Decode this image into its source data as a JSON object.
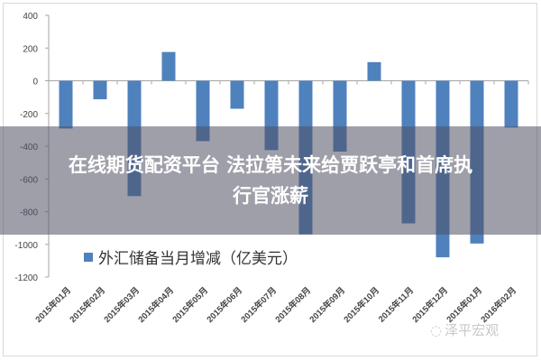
{
  "chart_data": {
    "type": "bar",
    "title": "",
    "xlabel": "",
    "ylabel": "",
    "ylim": [
      -1200,
      400
    ],
    "yticks": [
      400,
      200,
      0,
      -200,
      -400,
      -600,
      -800,
      -1000,
      -1200
    ],
    "grid": false,
    "legend_position": "inside-lower-left",
    "categories": [
      "2015年01月",
      "2015年02月",
      "2015年03月",
      "2015年04月",
      "2015年05月",
      "2015年06月",
      "2015年07月",
      "2015年08月",
      "2015年09月",
      "2015年10月",
      "2015年11月",
      "2015年12月",
      "2016年01月",
      "2016年02月"
    ],
    "series": [
      {
        "name": "外汇储备当月增减（亿美元）",
        "color": "#4f81bd",
        "values": [
          -292,
          -113,
          -705,
          176,
          -369,
          -171,
          -424,
          -939,
          -433,
          114,
          -872,
          -1079,
          -995,
          -286
        ]
      }
    ]
  },
  "legend": {
    "label": "外汇储备当月增减（亿美元）",
    "color": "#4f81bd"
  },
  "overlay": {
    "line1": "在线期货配资平台 法拉第未来给贾跃亭和首席执",
    "line2": "行官涨薪"
  },
  "watermark": {
    "text": "泽平宏观"
  }
}
